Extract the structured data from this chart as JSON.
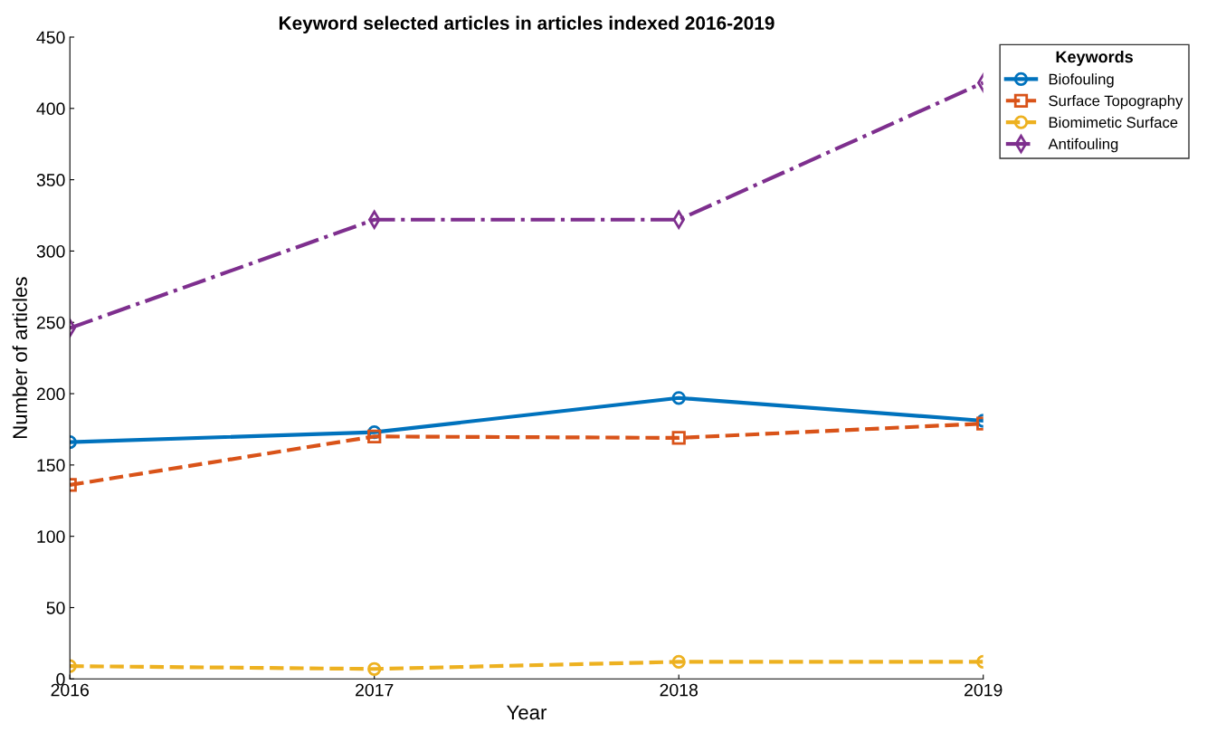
{
  "chart_data": {
    "type": "line",
    "title": "Keyword selected articles in articles indexed 2016-2019",
    "xlabel": "Year",
    "ylabel": "Number of articles",
    "legend_title": "Keywords",
    "x": [
      2016,
      2017,
      2018,
      2019
    ],
    "series": [
      {
        "name": "Biofouling",
        "color": "#0072bd",
        "values": [
          166,
          173,
          197,
          181
        ],
        "marker": "circle",
        "line_style": "solid"
      },
      {
        "name": "Surface Topography",
        "color": "#d95319",
        "values": [
          136,
          170,
          169,
          179
        ],
        "marker": "square",
        "line_style": "dashed"
      },
      {
        "name": "Biomimetic Surface",
        "color": "#edb120",
        "values": [
          9,
          7,
          12,
          12
        ],
        "marker": "circle",
        "line_style": "dashed"
      },
      {
        "name": "Antifouling",
        "color": "#7e2f8e",
        "values": [
          246,
          322,
          322,
          418
        ],
        "marker": "diamond",
        "line_style": "dashdot"
      }
    ],
    "xlim": [
      2016,
      2019
    ],
    "xticks": [
      2016,
      2017,
      2018,
      2019
    ],
    "ylim": [
      0,
      450
    ],
    "yticks": [
      0,
      50,
      100,
      150,
      200,
      250,
      300,
      350,
      400,
      450
    ],
    "grid": false,
    "legend": "top right"
  }
}
